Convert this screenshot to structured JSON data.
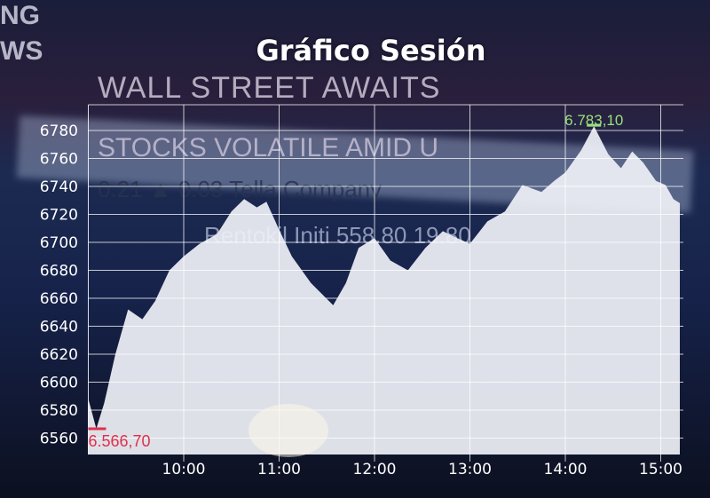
{
  "background_text": {
    "line1": "WALL STREET AWAITS",
    "line2": "STOCKS VOLATILE AMID U",
    "line3": "0.21 ▲ 0.03   Tella Company",
    "line4": "Rentokil Initi  558.80      19.80",
    "logo1": "NG",
    "logo2": "WS"
  },
  "chart_data": {
    "type": "area",
    "title": "Gráfico Sesión",
    "xlabel": "",
    "ylabel": "",
    "x_ticks": [
      "10:00",
      "11:00",
      "12:00",
      "13:00",
      "14:00",
      "15:00"
    ],
    "y_ticks": [
      6780,
      6760,
      6740,
      6720,
      6700,
      6680,
      6660,
      6640,
      6620,
      6600,
      6580,
      6560
    ],
    "xlim": [
      "09:00",
      "15:15"
    ],
    "ylim": [
      6550,
      6800
    ],
    "grid": true,
    "min_label": "6.566,70",
    "max_label": "6.783,10",
    "min_color": "#e0304a",
    "max_color": "#9be07a",
    "fill_color": "#eef0f6",
    "series": [
      {
        "x": [
          "09:00",
          "09:05",
          "09:10",
          "09:17",
          "09:25",
          "09:34",
          "09:42",
          "09:51",
          "10:00",
          "10:10",
          "10:21",
          "10:30",
          "10:38",
          "10:46",
          "10:52",
          "11:00",
          "11:08",
          "11:20",
          "11:34",
          "11:42",
          "11:50",
          "12:00",
          "12:10",
          "12:21",
          "12:32",
          "12:43",
          "12:52",
          "13:00",
          "13:11",
          "13:22",
          "13:33",
          "13:45",
          "13:53",
          "14:00",
          "14:10",
          "14:18",
          "14:27",
          "14:35",
          "14:42",
          "14:49",
          "14:57",
          "15:03",
          "15:08",
          "15:12"
        ],
        "y": [
          6588,
          6566.7,
          6585,
          6620,
          6652,
          6645,
          6658,
          6680,
          6690,
          6699,
          6706,
          6722,
          6731,
          6725,
          6729,
          6709,
          6690,
          6671,
          6655,
          6671,
          6696,
          6703,
          6687,
          6680,
          6696,
          6708,
          6703,
          6699,
          6715,
          6722,
          6741,
          6736,
          6744,
          6750,
          6766,
          6783.1,
          6763,
          6753,
          6765,
          6757,
          6744,
          6741,
          6731,
          6728
        ]
      }
    ]
  }
}
